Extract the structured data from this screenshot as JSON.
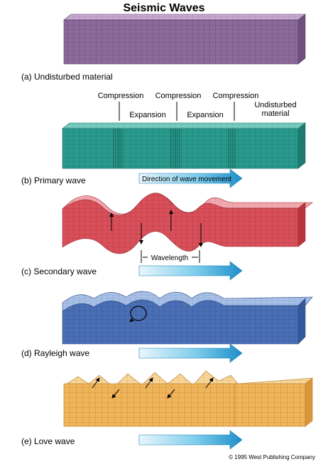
{
  "title": "Seismic Waves",
  "panels": [
    {
      "id": "a",
      "label": "(a) Undisturbed material"
    },
    {
      "id": "b",
      "label": "(b) Primary wave"
    },
    {
      "id": "c",
      "label": "(c) Secondary wave"
    },
    {
      "id": "d",
      "label": "(d) Rayleigh wave"
    },
    {
      "id": "e",
      "label": "(e) Love wave"
    }
  ],
  "primary_annotations": {
    "compression": [
      "Compression",
      "Compression",
      "Compression"
    ],
    "expansion": [
      "Expansion",
      "Expansion"
    ],
    "undisturbed_line1": "Undisturbed",
    "undisturbed_line2": "material"
  },
  "direction_label": "Direction of wave movement",
  "wavelength_label": "Wavelength",
  "copyright": "© 1995 West Publishing Company",
  "colors": {
    "undisturbed": "#8c6a9a",
    "primary": "#2a9a8e",
    "secondary": "#d9505a",
    "rayleigh": "#4a6fb5",
    "love": "#f0b45a",
    "arrow": "#29a3d9"
  }
}
